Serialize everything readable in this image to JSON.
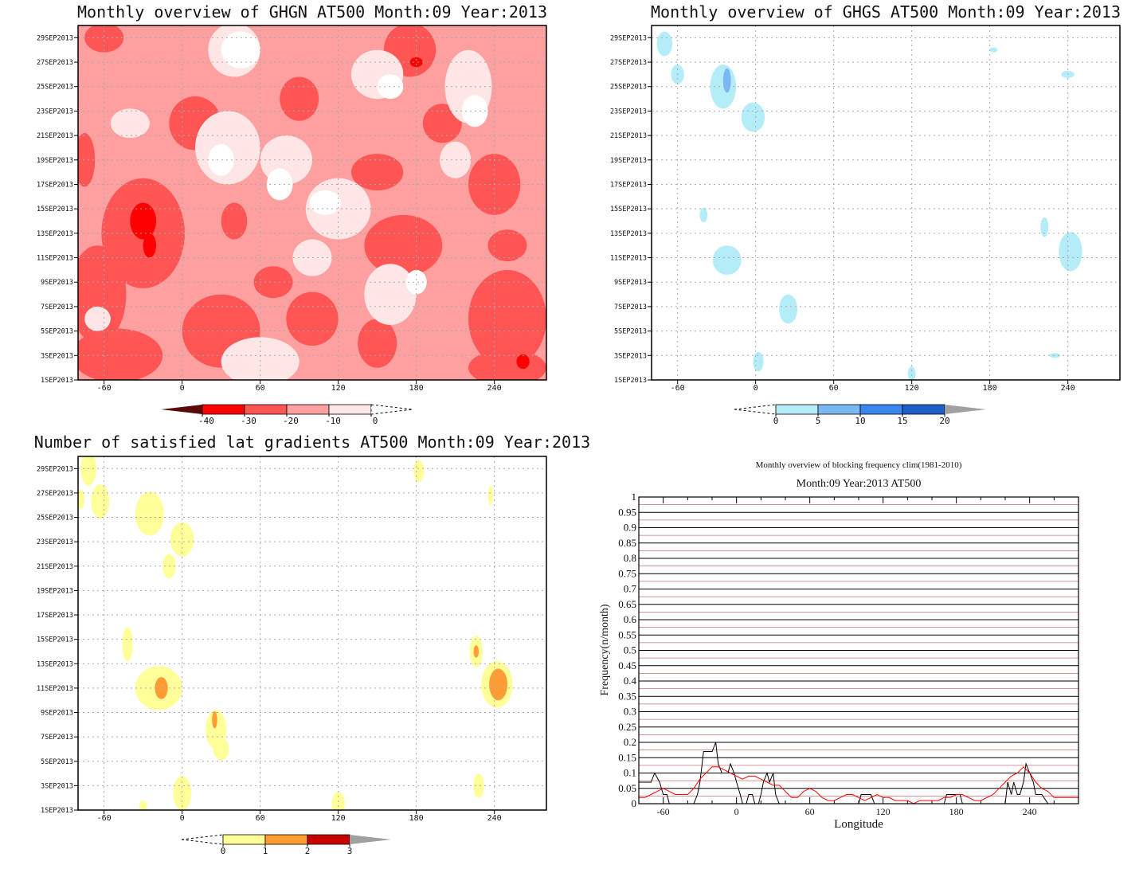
{
  "colors": {
    "red_scale": [
      "#5a0a0a",
      "#ff0000",
      "#ff5555",
      "#ffa0a0",
      "#ffe6e6",
      "#ffffff"
    ],
    "blue_scale": [
      "#ffffff",
      "#b4ecf7",
      "#7ab8f4",
      "#3a86ee",
      "#1f5fc8",
      "#a0a0a0"
    ],
    "yellow_scale": [
      "#ffffff",
      "#ffff99",
      "#ff9c33",
      "#c80000",
      "#a0a0a0"
    ],
    "grid": "#aaaaaa",
    "series_black": "#000000",
    "series_red": "#ff0000"
  },
  "chart_data": [
    {
      "type": "heatmap",
      "title": "Monthly overview of GHGN AT500 Month:09 Year:2013",
      "x_ticks": [
        "-60",
        "0",
        "60",
        "120",
        "180",
        "240"
      ],
      "y_ticks": [
        "1SEP2013",
        "3SEP2013",
        "5SEP2013",
        "7SEP2013",
        "9SEP2013",
        "11SEP2013",
        "13SEP2013",
        "15SEP2013",
        "17SEP2013",
        "19SEP2013",
        "21SEP2013",
        "23SEP2013",
        "25SEP2013",
        "27SEP2013",
        "29SEP2013"
      ],
      "xlim": [
        -80,
        280
      ],
      "ylim": [
        1,
        30
      ],
      "colorbar": [
        "-40",
        "-30",
        "-20",
        "-10",
        "0"
      ],
      "blobs": [
        {
          "x": -30,
          "y": 14,
          "rx": 10,
          "ry": 1.5,
          "level": 1
        },
        {
          "x": -25,
          "y": 12,
          "rx": 5,
          "ry": 1,
          "level": 1
        },
        {
          "x": 180,
          "y": 27,
          "rx": 5,
          "ry": 0.4,
          "level": 1
        },
        {
          "x": 262,
          "y": 2.5,
          "rx": 5,
          "ry": 0.6,
          "level": 1
        },
        {
          "x": -30,
          "y": 13,
          "rx": 32,
          "ry": 4.5,
          "level": 2
        },
        {
          "x": -65,
          "y": 8,
          "rx": 22,
          "ry": 4,
          "level": 2
        },
        {
          "x": -50,
          "y": 3,
          "rx": 35,
          "ry": 2.2,
          "level": 2
        },
        {
          "x": -75,
          "y": 19,
          "rx": 8,
          "ry": 2.2,
          "level": 2
        },
        {
          "x": 10,
          "y": 22,
          "rx": 20,
          "ry": 2.2,
          "level": 2
        },
        {
          "x": 90,
          "y": 24,
          "rx": 15,
          "ry": 1.8,
          "level": 2
        },
        {
          "x": 175,
          "y": 28,
          "rx": 20,
          "ry": 2.2,
          "level": 2
        },
        {
          "x": 250,
          "y": 6,
          "rx": 30,
          "ry": 4,
          "level": 2
        },
        {
          "x": 250,
          "y": 2,
          "rx": 30,
          "ry": 1.5,
          "level": 2
        },
        {
          "x": 240,
          "y": 17,
          "rx": 20,
          "ry": 2.5,
          "level": 2
        },
        {
          "x": 250,
          "y": 12,
          "rx": 15,
          "ry": 1.3,
          "level": 2
        },
        {
          "x": 150,
          "y": 18,
          "rx": 20,
          "ry": 1.5,
          "level": 2
        },
        {
          "x": 30,
          "y": 5,
          "rx": 30,
          "ry": 3,
          "level": 2
        },
        {
          "x": 100,
          "y": 6,
          "rx": 20,
          "ry": 2.2,
          "level": 2
        },
        {
          "x": 170,
          "y": 12,
          "rx": 30,
          "ry": 2.5,
          "level": 2
        },
        {
          "x": -60,
          "y": 29,
          "rx": 15,
          "ry": 1.2,
          "level": 2
        },
        {
          "x": 200,
          "y": 22,
          "rx": 15,
          "ry": 1.6,
          "level": 2
        },
        {
          "x": 70,
          "y": 9,
          "rx": 15,
          "ry": 1.3,
          "level": 2
        },
        {
          "x": 150,
          "y": 4,
          "rx": 15,
          "ry": 2,
          "level": 2
        },
        {
          "x": 40,
          "y": 14,
          "rx": 10,
          "ry": 1.5,
          "level": 2
        },
        {
          "x": 35,
          "y": 20,
          "rx": 25,
          "ry": 3,
          "level": 4
        },
        {
          "x": 40,
          "y": 28,
          "rx": 20,
          "ry": 2.2,
          "level": 4
        },
        {
          "x": 80,
          "y": 19,
          "rx": 20,
          "ry": 2,
          "level": 4
        },
        {
          "x": 120,
          "y": 15,
          "rx": 25,
          "ry": 2.5,
          "level": 4
        },
        {
          "x": 150,
          "y": 26,
          "rx": 20,
          "ry": 2,
          "level": 4
        },
        {
          "x": 220,
          "y": 25,
          "rx": 18,
          "ry": 3,
          "level": 4
        },
        {
          "x": 160,
          "y": 8,
          "rx": 20,
          "ry": 2.5,
          "level": 4
        },
        {
          "x": 60,
          "y": 2.5,
          "rx": 30,
          "ry": 2,
          "level": 4
        },
        {
          "x": 100,
          "y": 11,
          "rx": 15,
          "ry": 1.5,
          "level": 4
        },
        {
          "x": -40,
          "y": 22,
          "rx": 15,
          "ry": 1.2,
          "level": 4
        },
        {
          "x": -65,
          "y": 6,
          "rx": 10,
          "ry": 1,
          "level": 4
        },
        {
          "x": 210,
          "y": 19,
          "rx": 12,
          "ry": 1.5,
          "level": 4
        },
        {
          "x": 30,
          "y": 19,
          "rx": 10,
          "ry": 1.3,
          "level": 5
        },
        {
          "x": 45,
          "y": 28,
          "rx": 15,
          "ry": 1.5,
          "level": 5
        },
        {
          "x": 75,
          "y": 17,
          "rx": 10,
          "ry": 1.3,
          "level": 5
        },
        {
          "x": 160,
          "y": 25,
          "rx": 10,
          "ry": 1,
          "level": 5
        },
        {
          "x": 225,
          "y": 23,
          "rx": 10,
          "ry": 1.3,
          "level": 5
        },
        {
          "x": 110,
          "y": 15.5,
          "rx": 12,
          "ry": 1,
          "level": 5
        },
        {
          "x": 180,
          "y": 9,
          "rx": 8,
          "ry": 1,
          "level": 5
        }
      ]
    },
    {
      "type": "heatmap",
      "title": "Monthly overview of GHGS AT500 Month:09 Year:2013",
      "x_ticks": [
        "-60",
        "0",
        "60",
        "120",
        "180",
        "240"
      ],
      "y_ticks": [
        "1SEP2013",
        "3SEP2013",
        "5SEP2013",
        "7SEP2013",
        "9SEP2013",
        "11SEP2013",
        "13SEP2013",
        "15SEP2013",
        "17SEP2013",
        "19SEP2013",
        "21SEP2013",
        "23SEP2013",
        "25SEP2013",
        "27SEP2013",
        "29SEP2013"
      ],
      "xlim": [
        -80,
        280
      ],
      "ylim": [
        1,
        30
      ],
      "colorbar": [
        "0",
        "5",
        "10",
        "15",
        "20"
      ],
      "blobs": [
        {
          "x": -70,
          "y": 28.5,
          "rx": 6,
          "ry": 1,
          "level": 1
        },
        {
          "x": -60,
          "y": 26,
          "rx": 5,
          "ry": 0.8,
          "level": 1
        },
        {
          "x": -25,
          "y": 25,
          "rx": 10,
          "ry": 1.8,
          "level": 1
        },
        {
          "x": -22,
          "y": 25.5,
          "rx": 3,
          "ry": 1,
          "level": 2
        },
        {
          "x": -2,
          "y": 22.5,
          "rx": 9,
          "ry": 1.2,
          "level": 1
        },
        {
          "x": -40,
          "y": 14.5,
          "rx": 3,
          "ry": 0.6,
          "level": 1
        },
        {
          "x": -22,
          "y": 10.8,
          "rx": 11,
          "ry": 1.2,
          "level": 1
        },
        {
          "x": 25,
          "y": 6.8,
          "rx": 7,
          "ry": 1.2,
          "level": 1
        },
        {
          "x": 2,
          "y": 2.5,
          "rx": 4,
          "ry": 0.8,
          "level": 1
        },
        {
          "x": 120,
          "y": 1.5,
          "rx": 3,
          "ry": 0.6,
          "level": 1
        },
        {
          "x": 183,
          "y": 28,
          "rx": 3,
          "ry": 0.2,
          "level": 1
        },
        {
          "x": 240,
          "y": 26,
          "rx": 5,
          "ry": 0.3,
          "level": 1
        },
        {
          "x": 222,
          "y": 13.5,
          "rx": 3,
          "ry": 0.8,
          "level": 1
        },
        {
          "x": 242,
          "y": 11.5,
          "rx": 9,
          "ry": 1.6,
          "level": 1
        },
        {
          "x": 230,
          "y": 3,
          "rx": 4,
          "ry": 0.2,
          "level": 1
        }
      ]
    },
    {
      "type": "heatmap",
      "title": "Number of satisfied lat gradients AT500 Month:09 Year:2013",
      "x_ticks": [
        "-60",
        "0",
        "60",
        "120",
        "180",
        "240"
      ],
      "y_ticks": [
        "1SEP2013",
        "3SEP2013",
        "5SEP2013",
        "7SEP2013",
        "9SEP2013",
        "11SEP2013",
        "13SEP2013",
        "15SEP2013",
        "17SEP2013",
        "19SEP2013",
        "21SEP2013",
        "23SEP2013",
        "25SEP2013",
        "27SEP2013",
        "29SEP2013"
      ],
      "xlim": [
        -80,
        280
      ],
      "ylim": [
        1,
        30
      ],
      "colorbar": [
        "0",
        "1",
        "2",
        "3"
      ],
      "blobs": [
        {
          "x": -72,
          "y": 29,
          "rx": 6,
          "ry": 1.4,
          "level": 1
        },
        {
          "x": -78,
          "y": 26.5,
          "rx": 3,
          "ry": 0.8,
          "level": 1
        },
        {
          "x": -63,
          "y": 26.3,
          "rx": 7,
          "ry": 1.4,
          "level": 1
        },
        {
          "x": -25,
          "y": 25.3,
          "rx": 11,
          "ry": 1.8,
          "level": 1
        },
        {
          "x": 0,
          "y": 23.2,
          "rx": 9,
          "ry": 1.4,
          "level": 1
        },
        {
          "x": -10,
          "y": 21,
          "rx": 5,
          "ry": 1,
          "level": 1
        },
        {
          "x": 182,
          "y": 28.8,
          "rx": 4,
          "ry": 0.9,
          "level": 1
        },
        {
          "x": 237,
          "y": 26.8,
          "rx": 2,
          "ry": 0.8,
          "level": 1
        },
        {
          "x": -42,
          "y": 14.6,
          "rx": 4,
          "ry": 1.4,
          "level": 1
        },
        {
          "x": -18,
          "y": 11,
          "rx": 18,
          "ry": 1.8,
          "level": 1
        },
        {
          "x": -16,
          "y": 11,
          "rx": 5,
          "ry": 0.9,
          "level": 2
        },
        {
          "x": 26,
          "y": 7.6,
          "rx": 8,
          "ry": 1.6,
          "level": 1
        },
        {
          "x": 25,
          "y": 8.4,
          "rx": 2,
          "ry": 0.7,
          "level": 2
        },
        {
          "x": 30,
          "y": 6,
          "rx": 6,
          "ry": 0.9,
          "level": 1
        },
        {
          "x": 0,
          "y": 2.4,
          "rx": 7,
          "ry": 1.4,
          "level": 1
        },
        {
          "x": -30,
          "y": 1.2,
          "rx": 3,
          "ry": 0.6,
          "level": 1
        },
        {
          "x": 120,
          "y": 1.5,
          "rx": 5,
          "ry": 1,
          "level": 1
        },
        {
          "x": 226,
          "y": 14,
          "rx": 5,
          "ry": 1.3,
          "level": 1
        },
        {
          "x": 226,
          "y": 14,
          "rx": 2,
          "ry": 0.5,
          "level": 2
        },
        {
          "x": 242,
          "y": 11.3,
          "rx": 12,
          "ry": 1.9,
          "level": 1
        },
        {
          "x": 243,
          "y": 11.3,
          "rx": 7,
          "ry": 1.3,
          "level": 2
        },
        {
          "x": 228,
          "y": 3,
          "rx": 4,
          "ry": 1,
          "level": 1
        }
      ]
    },
    {
      "type": "line",
      "title": "Monthly overview of blocking frequency clim(1981-2010)",
      "subtitle": "Month:09 Year:2013  AT500",
      "xlabel": "Longitude",
      "ylabel": "Frequency(n/month)",
      "xlim": [
        -80,
        280
      ],
      "ylim": [
        0,
        1
      ],
      "x_ticks": [
        "-60",
        "0",
        "60",
        "120",
        "180",
        "240"
      ],
      "y_ticks": [
        "0",
        "0.05",
        "0.1",
        "0.15",
        "0.2",
        "0.25",
        "0.3",
        "0.35",
        "0.4",
        "0.45",
        "0.5",
        "0.55",
        "0.6",
        "0.65",
        "0.7",
        "0.75",
        "0.8",
        "0.85",
        "0.9",
        "0.95",
        "1"
      ],
      "series": [
        {
          "color": "#000000",
          "x": [
            -80,
            -75,
            -70,
            -67,
            -63,
            -60,
            -57,
            -55,
            -50,
            -45,
            -40,
            -35,
            -32,
            -30,
            -27,
            -25,
            -22,
            -20,
            -17,
            -15,
            -12,
            -10,
            -7,
            -5,
            -2,
            0,
            3,
            5,
            8,
            10,
            13,
            15,
            18,
            20,
            22,
            25,
            27,
            30,
            32,
            35,
            38,
            40,
            43,
            45,
            50,
            55,
            60,
            65,
            70,
            75,
            80,
            85,
            90,
            95,
            100,
            102,
            105,
            108,
            110,
            113,
            115,
            120,
            125,
            130,
            135,
            140,
            145,
            150,
            155,
            160,
            165,
            170,
            172,
            175,
            178,
            180,
            183,
            185,
            188,
            190,
            195,
            200,
            205,
            210,
            215,
            220,
            222,
            225,
            227,
            230,
            232,
            235,
            237,
            240,
            243,
            245,
            250,
            255,
            260,
            265,
            270,
            275,
            280
          ],
          "y": [
            0.07,
            0.07,
            0.07,
            0.1,
            0.07,
            0.03,
            0.03,
            0,
            0,
            0,
            0,
            0,
            0.03,
            0.07,
            0.17,
            0.17,
            0.17,
            0.17,
            0.2,
            0.13,
            0.1,
            0.1,
            0.1,
            0.13,
            0.1,
            0.07,
            0.03,
            0,
            0,
            0.03,
            0.03,
            0,
            0,
            0.03,
            0.07,
            0.1,
            0.07,
            0.1,
            0.03,
            0,
            0,
            0,
            0,
            0,
            0,
            0,
            0,
            0,
            0,
            0,
            0,
            0,
            0,
            0,
            0,
            0.03,
            0.03,
            0.03,
            0.03,
            0,
            0,
            0,
            0,
            0,
            0,
            0,
            0,
            0,
            0,
            0,
            0,
            0,
            0.03,
            0.03,
            0.03,
            0.03,
            0.03,
            0,
            0,
            0,
            0,
            0,
            0,
            0,
            0,
            0,
            0.07,
            0.03,
            0.07,
            0.03,
            0.03,
            0.07,
            0.13,
            0.1,
            0.07,
            0.03,
            0.03,
            0,
            0,
            0,
            0,
            0,
            0
          ]
        },
        {
          "color": "#ff0000",
          "x": [
            -80,
            -75,
            -70,
            -65,
            -60,
            -55,
            -50,
            -45,
            -40,
            -35,
            -30,
            -25,
            -20,
            -15,
            -10,
            -5,
            0,
            5,
            10,
            15,
            20,
            25,
            30,
            35,
            40,
            45,
            50,
            55,
            60,
            65,
            70,
            75,
            80,
            85,
            90,
            95,
            100,
            105,
            110,
            115,
            120,
            125,
            130,
            135,
            140,
            145,
            150,
            155,
            160,
            165,
            170,
            175,
            180,
            185,
            190,
            195,
            200,
            205,
            210,
            215,
            220,
            225,
            230,
            235,
            240,
            245,
            250,
            255,
            260,
            265,
            270,
            275,
            280
          ],
          "y": [
            0.02,
            0.02,
            0.03,
            0.04,
            0.05,
            0.04,
            0.03,
            0.03,
            0.03,
            0.05,
            0.08,
            0.1,
            0.12,
            0.12,
            0.11,
            0.1,
            0.09,
            0.08,
            0.09,
            0.09,
            0.08,
            0.07,
            0.06,
            0.06,
            0.04,
            0.02,
            0.02,
            0.04,
            0.05,
            0.04,
            0.02,
            0.01,
            0.01,
            0.02,
            0.03,
            0.03,
            0.02,
            0.01,
            0.02,
            0.03,
            0.02,
            0.02,
            0.01,
            0.01,
            0.01,
            0.0,
            0.01,
            0.01,
            0.01,
            0.01,
            0.02,
            0.02,
            0.03,
            0.03,
            0.02,
            0.01,
            0.01,
            0.02,
            0.03,
            0.05,
            0.07,
            0.09,
            0.1,
            0.12,
            0.1,
            0.07,
            0.05,
            0.04,
            0.02,
            0.02,
            0.02,
            0.02,
            0.02
          ]
        }
      ]
    }
  ]
}
